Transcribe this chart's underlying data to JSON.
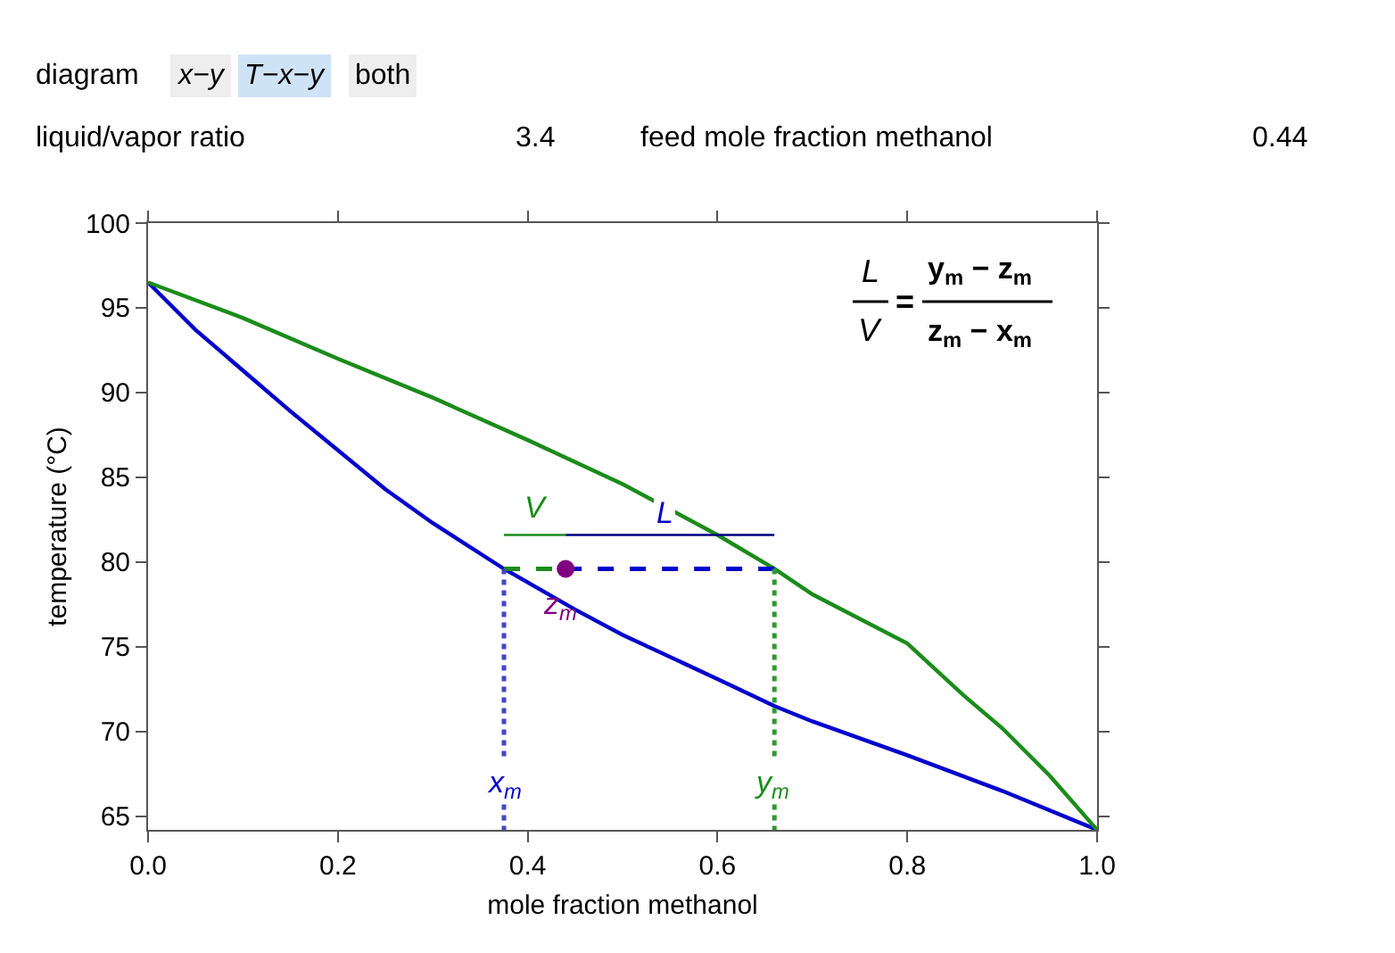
{
  "chart_data": {
    "type": "line",
    "xlabel": "mole fraction methanol",
    "ylabel": "temperature (°C)",
    "xlim": [
      0,
      1
    ],
    "ylim": [
      64.2,
      100
    ],
    "xticks": [
      {
        "value": 0,
        "label": "0.0"
      },
      {
        "value": 0.2,
        "label": "0.2"
      },
      {
        "value": 0.4,
        "label": "0.4"
      },
      {
        "value": 0.6,
        "label": "0.6"
      },
      {
        "value": 0.8,
        "label": "0.8"
      },
      {
        "value": 1,
        "label": "1.0"
      }
    ],
    "yticks": [
      65,
      70,
      75,
      80,
      85,
      90,
      95,
      100
    ],
    "legend": false,
    "series": [
      {
        "color": "#0000cc",
        "line_style": "solid",
        "marker": "none",
        "x": [
          0,
          0.05,
          0.1,
          0.15,
          0.2,
          0.25,
          0.3,
          0.375,
          0.45,
          0.5,
          0.6,
          0.66,
          0.7,
          0.8,
          0.9,
          1.0
        ],
        "values": [
          96.5,
          93.7,
          91.3,
          88.9,
          86.6,
          84.3,
          82.3,
          79.6,
          77.2,
          75.7,
          73.1,
          71.5,
          70.6,
          68.6,
          66.5,
          64.2
        ]
      },
      {
        "color": "#1a8c1a",
        "line_style": "solid",
        "marker": "none",
        "x": [
          0,
          0.1,
          0.2,
          0.3,
          0.4,
          0.5,
          0.6,
          0.66,
          0.7,
          0.8,
          0.86,
          0.9,
          0.95,
          1.0
        ],
        "values": [
          96.5,
          94.4,
          92.0,
          89.7,
          87.2,
          84.6,
          81.6,
          79.6,
          78.1,
          75.2,
          72.1,
          70.2,
          67.4,
          64.2
        ]
      },
      {
        "color": "#1a8c1a",
        "line_style": "dashed",
        "marker": "none",
        "x": [
          0.375,
          0.44
        ],
        "values": [
          79.6,
          79.6
        ]
      },
      {
        "color": "#0000cc",
        "line_style": "dashed",
        "marker": "none",
        "x": [
          0.44,
          0.66
        ],
        "values": [
          79.6,
          79.6
        ]
      },
      {
        "color": "#4444cc",
        "line_style": "dotted",
        "marker": "none",
        "x": [
          0.375,
          0.375
        ],
        "values": [
          79.6,
          68.3
        ]
      },
      {
        "color": "#4444cc",
        "line_style": "dotted",
        "marker": "none",
        "x": [
          0.375,
          0.375
        ],
        "values": [
          65.7,
          64.2
        ]
      },
      {
        "color": "#2e9a2e",
        "line_style": "dotted",
        "marker": "none",
        "x": [
          0.66,
          0.66
        ],
        "values": [
          79.6,
          68.3
        ]
      },
      {
        "color": "#2e9a2e",
        "line_style": "dotted",
        "marker": "none",
        "x": [
          0.66,
          0.66
        ],
        "values": [
          65.7,
          64.2
        ]
      },
      {
        "color": "#1a8c1a",
        "line_style": "solid",
        "marker": "none",
        "x": [
          0.375,
          0.44
        ],
        "values": [
          81.6,
          81.6
        ]
      },
      {
        "color": "#000080",
        "line_style": "solid",
        "marker": "none",
        "x": [
          0.44,
          0.66
        ],
        "values": [
          81.6,
          81.6
        ]
      },
      {
        "type": "scatter",
        "color": "#800080",
        "marker": "circle",
        "x": [
          0.44
        ],
        "values": [
          79.6
        ]
      }
    ],
    "annotations": [
      "V",
      "L",
      "z$_{m}$",
      "x$_{m}$",
      "y$_{m}$",
      "L",
      "V",
      "=",
      "y$_{m}$ − z$_{m}$",
      "z$_{m}$ − x$_{m}$",
      "diagram",
      "x−y",
      "T−x−y",
      "both",
      "liquid/vapor ratio",
      "3.4",
      "feed mole fraction methanol",
      "0.44"
    ]
  }
}
